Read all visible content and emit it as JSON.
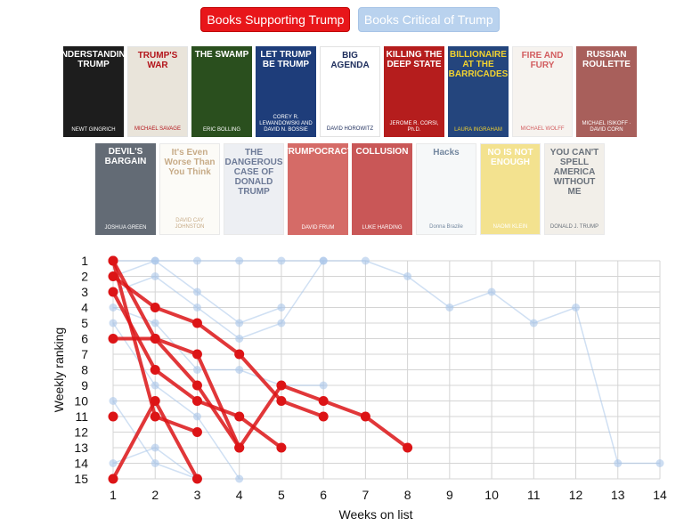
{
  "toggles": {
    "supporting": "Books Supporting Trump",
    "critical": "Books Critical of Trump"
  },
  "covers": {
    "supporting": [
      {
        "title": "UNDERSTANDING TRUMP",
        "author": "NEWT GINGRICH",
        "bg": "#1d1d1d",
        "fg": "#ffffff"
      },
      {
        "title": "TRUMP'S WAR",
        "author": "MICHAEL SAVAGE",
        "bg": "#e9e4da",
        "fg": "#b3151b"
      },
      {
        "title": "THE SWAMP",
        "author": "ERIC BOLLING",
        "bg": "#2a4f1e",
        "fg": "#ffffff"
      },
      {
        "title": "LET TRUMP BE TRUMP",
        "author": "COREY R. LEWANDOWSKI AND DAVID N. BOSSIE",
        "bg": "#1e3d7a",
        "fg": "#ffffff"
      },
      {
        "title": "BIG AGENDA",
        "author": "DAVID HOROWITZ",
        "bg": "#ffffff",
        "fg": "#1d2d5c"
      },
      {
        "title": "KILLING THE DEEP STATE",
        "author": "JEROME R. CORSI, Ph.D.",
        "bg": "#b51d1d",
        "fg": "#ffffff"
      },
      {
        "title": "BILLIONAIRE AT THE BARRICADES",
        "author": "LAURA INGRAHAM",
        "bg": "#24457d",
        "fg": "#f2d230"
      }
    ],
    "critical": [
      {
        "title": "FIRE AND FURY",
        "author": "MICHAEL WOLFF",
        "bg": "#f4f0ea",
        "fg": "#c4262a"
      },
      {
        "title": "RUSSIAN ROULETTE",
        "author": "MICHAEL ISIKOFF · DAVID CORN",
        "bg": "#8c2a25",
        "fg": "#ffffff"
      },
      {
        "title": "DEVIL'S BARGAIN",
        "author": "JOSHUA GREEN",
        "bg": "#2f3a48",
        "fg": "#ffffff"
      },
      {
        "title": "It's Even Worse Than You Think",
        "author": "DAVID CAY JOHNSTON",
        "bg": "#fbfaf5",
        "fg": "#b58f5f"
      },
      {
        "title": "THE DANGEROUS CASE OF DONALD TRUMP",
        "author": "",
        "bg": "#e7eaf0",
        "fg": "#3b4d73"
      },
      {
        "title": "TRUMPOCRACY",
        "author": "DAVID FRUM",
        "bg": "#c83a35",
        "fg": "#ffffff"
      },
      {
        "title": "COLLUSION",
        "author": "LUKE HARDING",
        "bg": "#b71f1f",
        "fg": "#ffffff"
      },
      {
        "title": "Hacks",
        "author": "Donna Brazile",
        "bg": "#f4f6f8",
        "fg": "#45607f"
      },
      {
        "title": "NO IS NOT ENOUGH",
        "author": "NAOMI KLEIN",
        "bg": "#efd96a",
        "fg": "#ffffff"
      },
      {
        "title": "YOU CAN'T SPELL AMERICA WITHOUT ME",
        "author": "DONALD J. TRUMP",
        "bg": "#eeeae2",
        "fg": "#38424f"
      }
    ]
  },
  "chart_data": {
    "type": "line",
    "xlabel": "Weeks on list",
    "ylabel": "Weekly ranking",
    "xlim": [
      1,
      14
    ],
    "ylim": [
      1,
      15
    ],
    "y_reversed": true,
    "x_ticks": [
      1,
      2,
      3,
      4,
      5,
      6,
      7,
      8,
      9,
      10,
      11,
      12,
      13,
      14
    ],
    "y_ticks": [
      1,
      2,
      3,
      4,
      5,
      6,
      7,
      8,
      9,
      10,
      11,
      12,
      13,
      14,
      15
    ],
    "grid": true,
    "colors": {
      "supporting": "#dc1416",
      "critical": "#aac7ea",
      "grid": "#d4d4d4"
    },
    "series": [
      {
        "group": "supporting",
        "points": [
          [
            1,
            1
          ],
          [
            2,
            6
          ],
          [
            3,
            7
          ],
          [
            4,
            13
          ],
          [
            5,
            9
          ],
          [
            6,
            10
          ],
          [
            7,
            11
          ],
          [
            8,
            13
          ]
        ]
      },
      {
        "group": "supporting",
        "points": [
          [
            1,
            2
          ],
          [
            2,
            4
          ],
          [
            3,
            5
          ],
          [
            4,
            7
          ],
          [
            5,
            10
          ],
          [
            6,
            11
          ]
        ]
      },
      {
        "group": "supporting",
        "points": [
          [
            1,
            3
          ],
          [
            2,
            8
          ],
          [
            3,
            10
          ],
          [
            4,
            11
          ],
          [
            5,
            13
          ]
        ]
      },
      {
        "group": "supporting",
        "points": [
          [
            1,
            6
          ],
          [
            2,
            6
          ],
          [
            3,
            9
          ],
          [
            4,
            13
          ]
        ]
      },
      {
        "group": "supporting",
        "points": [
          [
            1,
            1
          ],
          [
            2,
            11
          ],
          [
            3,
            12
          ]
        ]
      },
      {
        "group": "supporting",
        "points": [
          [
            1,
            15
          ],
          [
            2,
            10
          ],
          [
            3,
            15
          ]
        ]
      },
      {
        "group": "supporting",
        "points": [
          [
            1,
            11
          ]
        ]
      },
      {
        "group": "critical",
        "points": [
          [
            1,
            1
          ],
          [
            2,
            1
          ],
          [
            3,
            1
          ],
          [
            4,
            1
          ],
          [
            5,
            1
          ],
          [
            6,
            1
          ],
          [
            7,
            1
          ],
          [
            8,
            2
          ],
          [
            9,
            4
          ],
          [
            10,
            3
          ],
          [
            11,
            5
          ],
          [
            12,
            4
          ],
          [
            13,
            14
          ],
          [
            14,
            14
          ]
        ]
      },
      {
        "group": "critical",
        "points": [
          [
            1,
            2
          ],
          [
            2,
            1
          ],
          [
            3,
            3
          ],
          [
            4,
            5
          ],
          [
            5,
            4
          ]
        ]
      },
      {
        "group": "critical",
        "points": [
          [
            1,
            3
          ],
          [
            2,
            2
          ],
          [
            3,
            4
          ],
          [
            4,
            6
          ],
          [
            5,
            5
          ],
          [
            6,
            1
          ]
        ]
      },
      {
        "group": "critical",
        "points": [
          [
            1,
            4
          ],
          [
            2,
            5
          ],
          [
            3,
            8
          ],
          [
            4,
            8
          ],
          [
            5,
            9
          ],
          [
            6,
            9
          ]
        ]
      },
      {
        "group": "critical",
        "points": [
          [
            1,
            5
          ],
          [
            2,
            9
          ],
          [
            3,
            11
          ],
          [
            4,
            15
          ]
        ]
      },
      {
        "group": "critical",
        "points": [
          [
            1,
            10
          ],
          [
            2,
            14
          ],
          [
            3,
            15
          ]
        ]
      },
      {
        "group": "critical",
        "points": [
          [
            1,
            14
          ],
          [
            2,
            13
          ],
          [
            3,
            15
          ]
        ]
      }
    ]
  }
}
